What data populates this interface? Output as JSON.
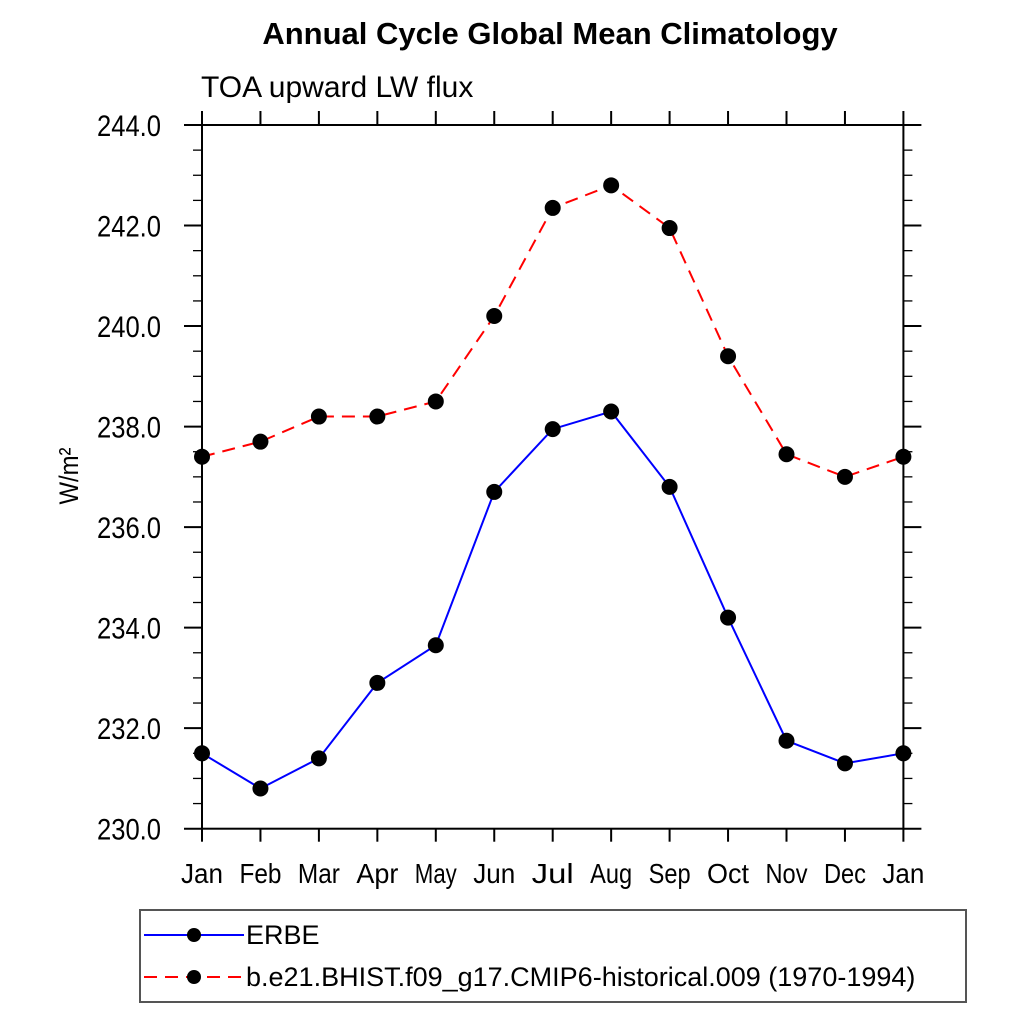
{
  "title": "Annual Cycle Global Mean Climatology",
  "subtitle": "TOA upward LW flux",
  "ylabel": "W/m²",
  "chart_data": {
    "type": "line",
    "title": "Annual Cycle Global Mean Climatology",
    "subtitle": "TOA upward LW flux",
    "ylabel": "W/m²",
    "xlabel": "",
    "categories": [
      "Jan",
      "Feb",
      "Mar",
      "Apr",
      "May",
      "Jun",
      "Jul",
      "Aug",
      "Sep",
      "Oct",
      "Nov",
      "Dec",
      "Jan"
    ],
    "ylim": [
      230.0,
      244.0
    ],
    "ytick_step": 2.0,
    "yminor_step": 0.5,
    "ytick_labels": [
      "244.0",
      "242.0",
      "240.0",
      "238.0",
      "236.0",
      "234.0",
      "232.0",
      "230.0"
    ],
    "grid": false,
    "legend_position": "bottom-left",
    "marker": {
      "shape": "circle",
      "color": "#000000"
    },
    "series": [
      {
        "name": "ERBE",
        "color": "#0000ff",
        "line_style": "solid",
        "values": [
          231.5,
          230.8,
          231.4,
          232.9,
          233.65,
          236.7,
          237.95,
          238.3,
          236.8,
          234.2,
          231.75,
          231.3,
          231.5
        ]
      },
      {
        "name": "b.e21.BHIST.f09_g17.CMIP6-historical.009 (1970-1994)",
        "color": "#ff0000",
        "line_style": "dashed",
        "values": [
          237.4,
          237.7,
          238.2,
          238.2,
          238.5,
          240.2,
          242.35,
          242.8,
          241.95,
          239.4,
          237.45,
          237.0,
          237.4
        ]
      }
    ]
  }
}
